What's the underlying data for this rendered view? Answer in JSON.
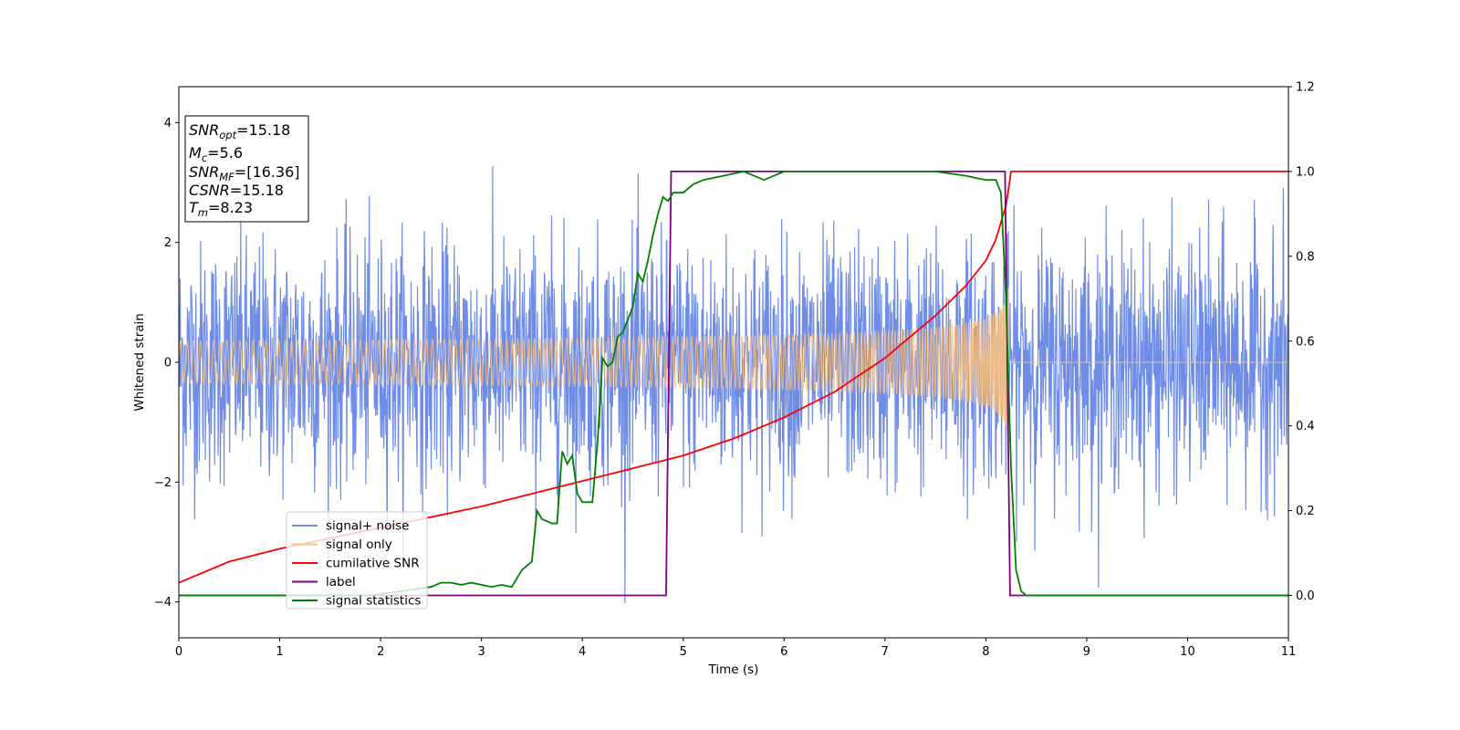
{
  "chart_data": {
    "type": "line",
    "xlabel": "Time (s)",
    "ylabel": "Whitened strain",
    "xlim": [
      0,
      11
    ],
    "ylim": [
      -4.6,
      4.6
    ],
    "y2lim": [
      -0.1,
      1.2
    ],
    "x_ticks": [
      "0",
      "1",
      "2",
      "3",
      "4",
      "5",
      "6",
      "7",
      "8",
      "9",
      "10",
      "11"
    ],
    "y_ticks": [
      "−4",
      "−2",
      "0",
      "2",
      "4"
    ],
    "y2_ticks": [
      "0.0",
      "0.2",
      "0.4",
      "0.6",
      "0.8",
      "1.0",
      "1.2"
    ],
    "grid": false,
    "legend_position": "lower-left",
    "annotation_box": {
      "lines": [
        {
          "sym": "SNR",
          "sub": "opt",
          "text": "=15.18"
        },
        {
          "sym": "M",
          "sub": "c",
          "text": "=5.6"
        },
        {
          "sym": "SNR",
          "sub": "MF",
          "text": "=[16.36]"
        },
        {
          "sym": "CSNR",
          "sub": "",
          "text": "=15.18"
        },
        {
          "sym": "T",
          "sub": "m",
          "text": "=8.23"
        }
      ]
    },
    "series": [
      {
        "name": "signal+ noise",
        "color": "#6f8de6",
        "axis": "left",
        "description_values": {
          "std_approx": 1.0,
          "t_range": [
            0,
            11
          ]
        }
      },
      {
        "name": "signal only",
        "color": "#ffc27a",
        "axis": "left",
        "chirp": {
          "t_start": 0,
          "t_merger": 8.23,
          "amp_start": 0.07,
          "amp_peak": 1.35
        }
      },
      {
        "name": "cumilative SNR",
        "color": "#ff0000",
        "axis": "right",
        "points": [
          [
            0,
            0.03
          ],
          [
            0.5,
            0.08
          ],
          [
            1,
            0.11
          ],
          [
            2,
            0.16
          ],
          [
            3,
            0.21
          ],
          [
            4,
            0.27
          ],
          [
            4.5,
            0.3
          ],
          [
            5,
            0.33
          ],
          [
            5.5,
            0.37
          ],
          [
            6,
            0.42
          ],
          [
            6.5,
            0.48
          ],
          [
            7,
            0.56
          ],
          [
            7.5,
            0.66
          ],
          [
            7.8,
            0.73
          ],
          [
            8,
            0.79
          ],
          [
            8.1,
            0.84
          ],
          [
            8.2,
            0.92
          ],
          [
            8.25,
            1.0
          ],
          [
            11,
            1.0
          ]
        ]
      },
      {
        "name": "label",
        "color": "#800080",
        "axis": "right",
        "points": [
          [
            0,
            0.0
          ],
          [
            4.83,
            0.0
          ],
          [
            4.88,
            1.0
          ],
          [
            8.19,
            1.0
          ],
          [
            8.24,
            0.0
          ],
          [
            11,
            0.0
          ]
        ]
      },
      {
        "name": "signal statistics",
        "color": "#008000",
        "axis": "right",
        "points": [
          [
            0,
            0.0
          ],
          [
            1,
            0.0
          ],
          [
            1.9,
            0.0
          ],
          [
            2.2,
            0.01
          ],
          [
            2.5,
            0.02
          ],
          [
            2.6,
            0.03
          ],
          [
            2.7,
            0.03
          ],
          [
            2.8,
            0.025
          ],
          [
            2.9,
            0.03
          ],
          [
            3.0,
            0.025
          ],
          [
            3.1,
            0.02
          ],
          [
            3.2,
            0.025
          ],
          [
            3.3,
            0.02
          ],
          [
            3.4,
            0.06
          ],
          [
            3.5,
            0.08
          ],
          [
            3.55,
            0.2
          ],
          [
            3.6,
            0.18
          ],
          [
            3.7,
            0.17
          ],
          [
            3.75,
            0.17
          ],
          [
            3.8,
            0.34
          ],
          [
            3.85,
            0.31
          ],
          [
            3.9,
            0.33
          ],
          [
            3.95,
            0.24
          ],
          [
            4.0,
            0.22
          ],
          [
            4.05,
            0.22
          ],
          [
            4.1,
            0.22
          ],
          [
            4.15,
            0.36
          ],
          [
            4.2,
            0.56
          ],
          [
            4.25,
            0.54
          ],
          [
            4.3,
            0.55
          ],
          [
            4.35,
            0.61
          ],
          [
            4.4,
            0.62
          ],
          [
            4.45,
            0.65
          ],
          [
            4.5,
            0.68
          ],
          [
            4.55,
            0.76
          ],
          [
            4.6,
            0.74
          ],
          [
            4.65,
            0.79
          ],
          [
            4.7,
            0.85
          ],
          [
            4.75,
            0.9
          ],
          [
            4.8,
            0.94
          ],
          [
            4.85,
            0.93
          ],
          [
            4.9,
            0.95
          ],
          [
            5.0,
            0.95
          ],
          [
            5.1,
            0.97
          ],
          [
            5.2,
            0.98
          ],
          [
            5.4,
            0.99
          ],
          [
            5.6,
            1.0
          ],
          [
            5.8,
            0.98
          ],
          [
            6.0,
            1.0
          ],
          [
            6.2,
            1.0
          ],
          [
            6.5,
            1.0
          ],
          [
            7.0,
            1.0
          ],
          [
            7.2,
            1.0
          ],
          [
            7.5,
            1.0
          ],
          [
            7.8,
            0.99
          ],
          [
            8.0,
            0.98
          ],
          [
            8.1,
            0.98
          ],
          [
            8.15,
            0.95
          ],
          [
            8.2,
            0.7
          ],
          [
            8.25,
            0.3
          ],
          [
            8.3,
            0.06
          ],
          [
            8.35,
            0.01
          ],
          [
            8.4,
            0.0
          ],
          [
            11,
            0.0
          ]
        ]
      }
    ]
  }
}
